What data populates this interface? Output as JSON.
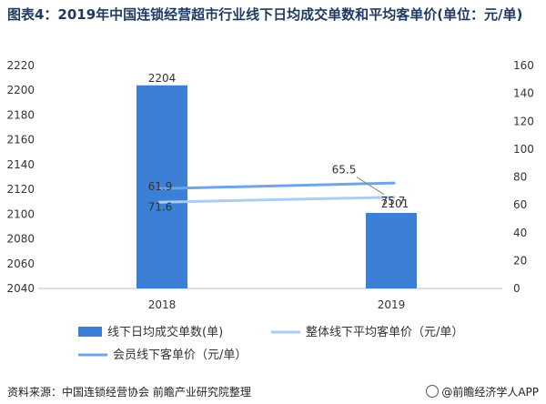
{
  "title": "图表4：2019年中国连锁经营超市行业线下日均成交单数和平均客单价(单位：元/单)",
  "source": "资料来源：中国连锁经营协会 前瞻产业研究院整理",
  "credit": "@前瞻经济学人APP",
  "colors": {
    "bar": "#3c7fd6",
    "overall_line": "#a9cdf3",
    "member_line": "#6fa5e8"
  },
  "chart_data": {
    "type": "bar",
    "categories": [
      "2018",
      "2019"
    ],
    "y_left": {
      "min": 2040,
      "max": 2220,
      "step": 20
    },
    "y_right": {
      "min": 0,
      "max": 160,
      "step": 20
    },
    "series": [
      {
        "name": "线下日均成交单数(单)",
        "type": "bar",
        "axis": "left",
        "values": [
          2204,
          2101
        ]
      },
      {
        "name": "整体线下平均客单价（元/单）",
        "type": "line",
        "axis": "right",
        "values": [
          61.9,
          65.5
        ]
      },
      {
        "name": "会员线下客单价（元/单）",
        "type": "line",
        "axis": "right",
        "values": [
          71.6,
          75.7
        ]
      }
    ],
    "data_labels": {
      "bar": [
        "2204",
        "2101"
      ],
      "overall_line": [
        "61.9",
        "65.5"
      ],
      "member_line": [
        "71.6",
        "75.7"
      ]
    },
    "legend_position": "bottom"
  }
}
